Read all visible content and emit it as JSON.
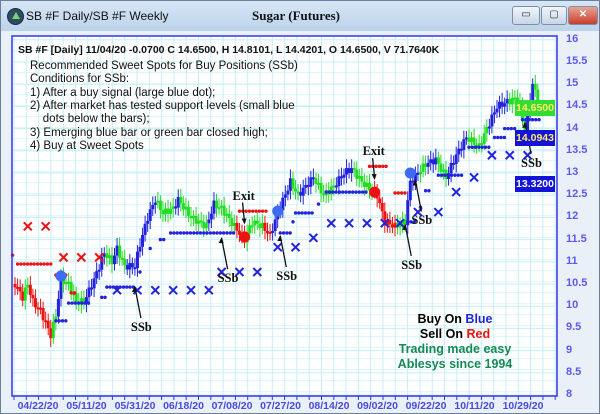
{
  "window": {
    "title": "SB #F Daily/SB #F Weekly",
    "chart_title": "Sugar (Futures)",
    "buttons": {
      "minimize": "▭",
      "maximize": "▢",
      "close": "✕"
    }
  },
  "header_line": "SB #F [Daily] 11/04/20  -0.0700 C 14.6500, H 14.8101, L 14.4201, O 14.6500, V 71.7640K",
  "notes": [
    "Recommended Sweet Spots for Buy Positions (SSb)",
    "Conditions for SSb:",
    "1) After a buy signal (large blue dot);",
    "2) After market has tested support levels (small blue",
    "    dots below the bars);",
    "3) Emerging blue bar or green bar closed high;",
    "4) Buy at Sweet Spots"
  ],
  "legend": {
    "buy_prefix": "Buy On ",
    "buy_word": "Blue",
    "sell_prefix": "Sell On ",
    "sell_word": "Red",
    "tagline1": "Trading made easy",
    "tagline2": "Ablesys since 1994"
  },
  "value_boxes": [
    {
      "label": "14.6500",
      "bg": "#33dd33",
      "fg": "#ffee66"
    },
    {
      "label": "14.0943",
      "bg": "#1414d8",
      "fg": "#ffee66"
    },
    {
      "label": "13.3200",
      "bg": "#1414d8",
      "fg": "#ffffff"
    }
  ],
  "colors": {
    "up": "#2222dd",
    "neutral": "#22dd22",
    "down": "#ee1111",
    "grid": "#c6eef7",
    "frame": "#3333ee"
  },
  "chart_data": {
    "type": "ohlc",
    "year": 2020,
    "y_ticks": [
      "16",
      "15.5",
      "15",
      "14.5",
      "14",
      "13.5",
      "13",
      "12.5",
      "12",
      "11.5",
      "11",
      "10.5",
      "10",
      "9.5",
      "9",
      "8.5",
      "8"
    ],
    "ylim": [
      8,
      16
    ],
    "x_ticks": [
      "04/22/20",
      "05/11/20",
      "05/31/20",
      "06/18/20",
      "07/08/20",
      "07/27/20",
      "08/14/20",
      "09/02/20",
      "09/22/20",
      "10/11/20",
      "10/29/20"
    ],
    "grid": true,
    "closes": [
      [
        "04/13",
        10.5,
        "down"
      ],
      [
        "04/16",
        10.2,
        "down"
      ],
      [
        "04/18",
        10.5,
        "neutral"
      ],
      [
        "04/20",
        10.1,
        "down"
      ],
      [
        "04/23",
        9.9,
        "down"
      ],
      [
        "04/27",
        9.35,
        "down"
      ],
      [
        "04/29",
        9.8,
        "neutral"
      ],
      [
        "05/01",
        10.6,
        "up"
      ],
      [
        "05/04",
        10.5,
        "neutral"
      ],
      [
        "05/07",
        10.1,
        "neutral"
      ],
      [
        "05/10",
        10.1,
        "neutral"
      ],
      [
        "05/14",
        10.6,
        "up"
      ],
      [
        "05/18",
        11.2,
        "up"
      ],
      [
        "05/21",
        11.0,
        "neutral"
      ],
      [
        "05/23",
        11.3,
        "up"
      ],
      [
        "05/26",
        10.9,
        "neutral"
      ],
      [
        "05/30",
        10.9,
        "up"
      ],
      [
        "06/01",
        11.4,
        "up"
      ],
      [
        "06/04",
        12.0,
        "up"
      ],
      [
        "06/07",
        12.4,
        "up"
      ],
      [
        "06/10",
        12.1,
        "neutral"
      ],
      [
        "06/14",
        12.2,
        "neutral"
      ],
      [
        "06/16",
        12.4,
        "up"
      ],
      [
        "06/21",
        12.0,
        "neutral"
      ],
      [
        "06/27",
        11.8,
        "neutral"
      ],
      [
        "06/30",
        12.3,
        "up"
      ],
      [
        "07/03",
        12.2,
        "neutral"
      ],
      [
        "07/08",
        11.8,
        "neutral"
      ],
      [
        "07/12",
        11.5,
        "down"
      ],
      [
        "07/15",
        11.9,
        "neutral"
      ],
      [
        "07/19",
        11.8,
        "neutral"
      ],
      [
        "07/22",
        11.6,
        "down"
      ],
      [
        "07/25",
        12.1,
        "up"
      ],
      [
        "07/30",
        12.8,
        "up"
      ],
      [
        "08/02",
        12.5,
        "neutral"
      ],
      [
        "08/08",
        12.9,
        "up"
      ],
      [
        "08/12",
        12.5,
        "neutral"
      ],
      [
        "08/16",
        12.7,
        "neutral"
      ],
      [
        "08/20",
        13.0,
        "up"
      ],
      [
        "08/23",
        13.1,
        "up"
      ],
      [
        "08/27",
        12.8,
        "neutral"
      ],
      [
        "08/31",
        12.6,
        "neutral"
      ],
      [
        "09/02",
        12.5,
        "down"
      ],
      [
        "09/05",
        11.9,
        "down"
      ],
      [
        "09/09",
        11.8,
        "down"
      ],
      [
        "09/13",
        11.9,
        "neutral"
      ],
      [
        "09/15",
        12.8,
        "up"
      ],
      [
        "09/18",
        13.0,
        "up"
      ],
      [
        "09/21",
        13.2,
        "neutral"
      ],
      [
        "09/25",
        13.3,
        "up"
      ],
      [
        "09/29",
        12.9,
        "neutral"
      ],
      [
        "10/03",
        13.4,
        "up"
      ],
      [
        "10/07",
        13.8,
        "up"
      ],
      [
        "10/12",
        13.6,
        "neutral"
      ],
      [
        "10/15",
        14.0,
        "neutral"
      ],
      [
        "10/19",
        14.5,
        "up"
      ],
      [
        "10/23",
        14.6,
        "up"
      ],
      [
        "10/27",
        14.7,
        "neutral"
      ],
      [
        "10/30",
        14.0,
        "neutral"
      ],
      [
        "11/02",
        15.0,
        "up"
      ],
      [
        "11/04",
        14.65,
        "neutral"
      ]
    ],
    "support_dots": [
      [
        "04/29",
        "05/03",
        9.67
      ],
      [
        "05/04",
        "05/12",
        10.07
      ],
      [
        "05/17",
        "05/19",
        10.2
      ],
      [
        "05/19",
        "05/30",
        10.43
      ],
      [
        "06/01",
        "06/01",
        10.77
      ],
      [
        "06/05",
        "06/05",
        11.3
      ],
      [
        "06/09",
        "06/11",
        11.5
      ],
      [
        "06/13",
        "07/08",
        11.65
      ],
      [
        "07/26",
        "07/30",
        11.65
      ],
      [
        "07/31",
        "07/31",
        11.9
      ],
      [
        "08/01",
        "08/08",
        12.1
      ],
      [
        "08/10",
        "08/10",
        12.3
      ],
      [
        "08/13",
        "08/29",
        12.57
      ],
      [
        "09/14",
        "09/17",
        11.9
      ],
      [
        "09/19",
        "09/19",
        12.23
      ],
      [
        "09/21",
        "09/23",
        12.6
      ],
      [
        "09/26",
        "10/06",
        12.95
      ],
      [
        "10/08",
        "10/17",
        13.58
      ],
      [
        "10/18",
        "10/22",
        13.8
      ],
      [
        "10/22",
        "10/27",
        14.0
      ],
      [
        "10/29",
        "11/05",
        14.2
      ]
    ],
    "resistance_dots": [
      [
        "04/12",
        "04/13",
        11.15
      ],
      [
        "04/14",
        "04/28",
        10.95
      ],
      [
        "04/29",
        "05/04",
        10.7
      ],
      [
        "05/05",
        "05/07",
        10.3
      ],
      [
        "07/10",
        "07/21",
        12.14
      ],
      [
        "08/30",
        "09/06",
        13.15
      ],
      [
        "09/09",
        "09/13",
        12.55
      ]
    ],
    "buy_x_markers": [
      [
        "05/23",
        10.36
      ],
      [
        "05/31",
        10.36
      ],
      [
        "06/07",
        10.36
      ],
      [
        "06/14",
        10.36
      ],
      [
        "06/21",
        10.36
      ],
      [
        "06/28",
        10.36
      ],
      [
        "07/03",
        10.77
      ],
      [
        "07/10",
        10.77
      ],
      [
        "07/17",
        10.77
      ],
      [
        "07/25",
        11.33
      ],
      [
        "08/01",
        11.33
      ],
      [
        "08/08",
        11.54
      ],
      [
        "08/15",
        11.87
      ],
      [
        "08/22",
        11.87
      ],
      [
        "08/29",
        11.87
      ],
      [
        "09/05",
        11.87
      ],
      [
        "09/11",
        11.87
      ],
      [
        "09/18",
        12.12
      ],
      [
        "09/26",
        12.12
      ],
      [
        "10/03",
        12.57
      ],
      [
        "10/10",
        12.9
      ],
      [
        "10/17",
        13.4
      ],
      [
        "10/24",
        13.4
      ],
      [
        "10/31",
        13.4
      ]
    ],
    "sell_x_markers": [
      [
        "04/18",
        11.8
      ],
      [
        "04/25",
        11.8
      ],
      [
        "05/02",
        11.1
      ],
      [
        "05/09",
        11.1
      ],
      [
        "05/16",
        11.1
      ]
    ],
    "buy_signals": [
      [
        "05/01",
        10.68
      ],
      [
        "07/25",
        12.14
      ],
      [
        "09/15",
        13.0
      ]
    ],
    "exit_signals": [
      [
        "07/12",
        11.56
      ],
      [
        "09/01",
        12.57
      ]
    ],
    "annotations": [
      {
        "text": "SSb",
        "at": [
          "05/30",
          10.5
        ]
      },
      {
        "text": "SSb",
        "at": [
          "07/03",
          11.6
        ]
      },
      {
        "text": "SSb",
        "at": [
          "07/26",
          11.65
        ]
      },
      {
        "text": "SSb",
        "at": [
          "09/13",
          11.9
        ]
      },
      {
        "text": "SSb",
        "at": [
          "09/17",
          12.9
        ]
      },
      {
        "text": "SSb",
        "at": [
          "10/30",
          14.2
        ]
      },
      {
        "text": "Exit",
        "at": [
          "07/12",
          11.75
        ]
      },
      {
        "text": "Exit",
        "at": [
          "09/01",
          12.75
        ]
      }
    ]
  }
}
